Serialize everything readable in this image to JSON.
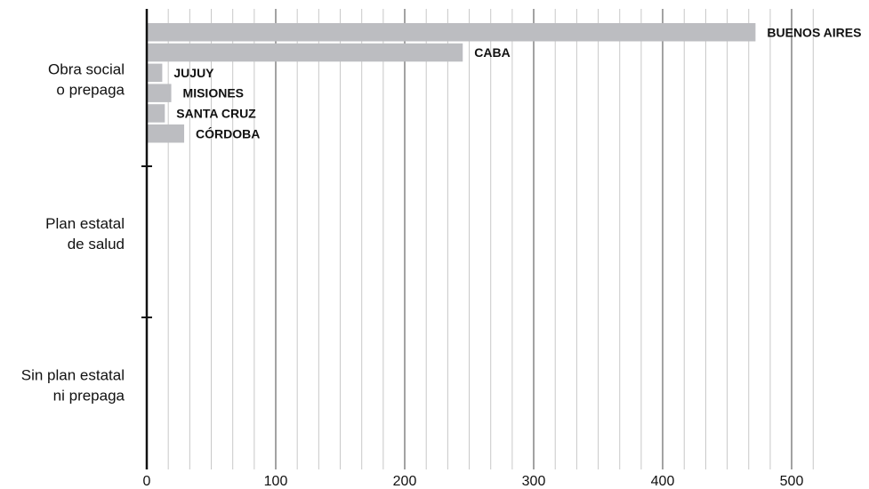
{
  "chart_data": {
    "type": "bar",
    "orientation": "horizontal",
    "title": "",
    "xlabel": "",
    "ylabel": "",
    "xlim": [
      0,
      500
    ],
    "x_ticks": [
      0,
      100,
      200,
      300,
      400,
      500
    ],
    "grid": true,
    "categories": [
      "Obra social\no prepaga",
      "Plan estatal\nde salud",
      "Sin plan estatal\nni prepaga"
    ],
    "groups": [
      {
        "category": "Obra social\no prepaga",
        "bars": [
          {
            "label": "BUENOS AIRES",
            "value": 472
          },
          {
            "label": "CABA",
            "value": 245
          },
          {
            "label": "JUJUY",
            "value": 12
          },
          {
            "label": "MISIONES",
            "value": 19
          },
          {
            "label": "SANTA CRUZ",
            "value": 14
          },
          {
            "label": "CÓRDOBA",
            "value": 29
          }
        ]
      },
      {
        "category": "Plan estatal\nde salud",
        "bars": []
      },
      {
        "category": "Sin plan estatal\nni prepaga",
        "bars": []
      }
    ],
    "colors": {
      "bar": "#bcbdc1",
      "grid_major": "#8c8c8c",
      "grid_minor": "#c8c8c8",
      "axis": "#111111"
    }
  }
}
